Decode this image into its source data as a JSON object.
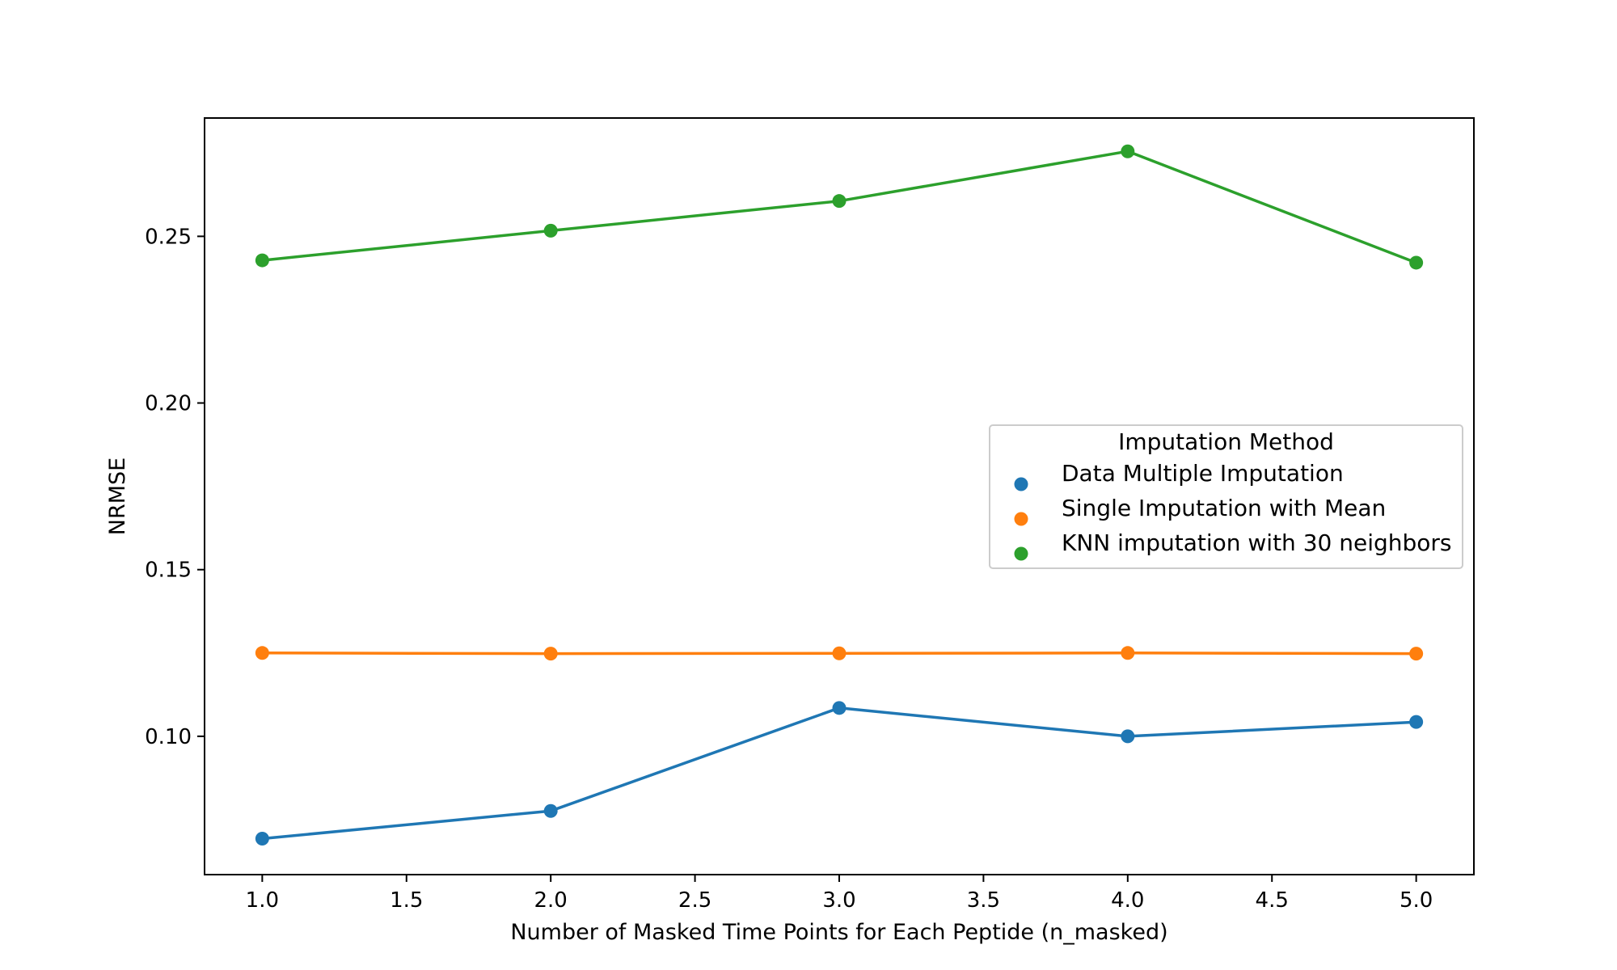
{
  "chart_data": {
    "type": "line",
    "title": "",
    "xlabel": "Number of Masked Time Points for Each Peptide (n_masked)",
    "ylabel": "NRMSE",
    "xlim": [
      0.8,
      5.2
    ],
    "ylim": [
      0.0585,
      0.2855
    ],
    "x_ticks": [
      1.0,
      1.5,
      2.0,
      2.5,
      3.0,
      3.5,
      4.0,
      4.5,
      5.0
    ],
    "x_tick_labels": [
      "1.0",
      "1.5",
      "2.0",
      "2.5",
      "3.0",
      "3.5",
      "4.0",
      "4.5",
      "5.0"
    ],
    "y_ticks": [
      0.1,
      0.15,
      0.2,
      0.25
    ],
    "y_tick_labels": [
      "0.10",
      "0.15",
      "0.20",
      "0.25"
    ],
    "grid": false,
    "legend": {
      "title": "Imputation Method",
      "placement": "center-right"
    },
    "x": [
      1,
      2,
      3,
      4,
      5
    ],
    "series": [
      {
        "name": "Data Multiple Imputation",
        "color": "#1f77b4",
        "values": [
          0.0693,
          0.0776,
          0.1085,
          0.1,
          0.1043
        ]
      },
      {
        "name": "Single Imputation with Mean",
        "color": "#ff7f0e",
        "values": [
          0.125,
          0.1248,
          0.1249,
          0.125,
          0.1248
        ]
      },
      {
        "name": "KNN imputation with 30 neighbors",
        "color": "#2ca02c",
        "values": [
          0.2428,
          0.2517,
          0.2606,
          0.2755,
          0.2421
        ]
      }
    ]
  }
}
